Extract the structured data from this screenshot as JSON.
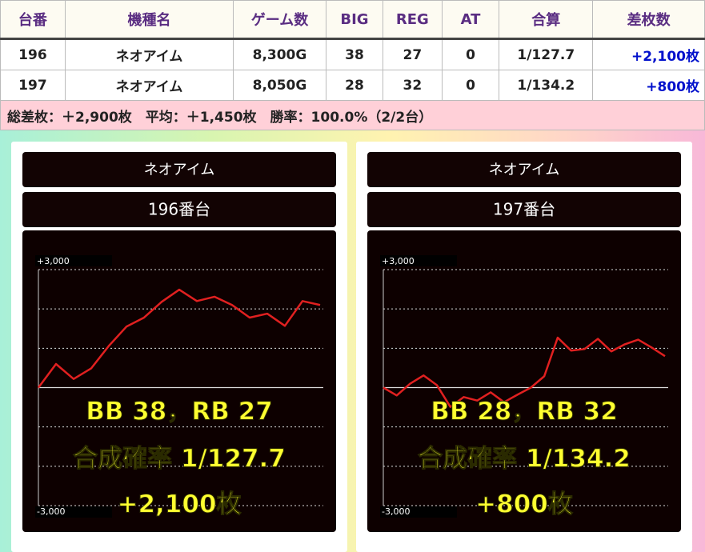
{
  "table": {
    "header": [
      "台番",
      "機種名",
      "ゲーム数",
      "BIG",
      "REG",
      "AT",
      "合算",
      "差枚数"
    ],
    "rows": [
      [
        "196",
        "ネオアイム",
        "8,300G",
        "38",
        "27",
        "0",
        "1/127.7",
        "+2,100枚"
      ],
      [
        "197",
        "ネオアイム",
        "8,050G",
        "28",
        "32",
        "0",
        "1/134.2",
        "+800枚"
      ]
    ],
    "summary": "総差枚：＋2,900枚　平均：＋1,450枚　勝率：100.0%（2/2台）"
  },
  "chart_data": [
    {
      "type": "line",
      "title": "ネオアイム",
      "subtitle": "196番台",
      "ylim": [
        -3000,
        3000
      ],
      "yticks": [
        {
          "value": 3000,
          "label": "+3,000"
        },
        {
          "value": 2000,
          "label": null
        },
        {
          "value": 1000,
          "label": null
        },
        {
          "value": 0,
          "label": null
        },
        {
          "value": -1000,
          "label": null
        },
        {
          "value": -2000,
          "label": null
        },
        {
          "value": -3000,
          "label": "-3,000"
        }
      ],
      "grid": true,
      "color": "#e02020",
      "values": [
        0,
        600,
        220,
        490,
        1060,
        1550,
        1780,
        2180,
        2490,
        2200,
        2310,
        2100,
        1780,
        1880,
        1570,
        2200,
        2100
      ],
      "annotations": [
        "BB 38，RB 27",
        "合成確率  1/127.7",
        "+2,100枚"
      ]
    },
    {
      "type": "line",
      "title": "ネオアイム",
      "subtitle": "197番台",
      "ylim": [
        -3000,
        3000
      ],
      "yticks": [
        {
          "value": 3000,
          "label": "+3,000"
        },
        {
          "value": 2000,
          "label": null
        },
        {
          "value": 1000,
          "label": null
        },
        {
          "value": 0,
          "label": null
        },
        {
          "value": -1000,
          "label": null
        },
        {
          "value": -2000,
          "label": null
        },
        {
          "value": -3000,
          "label": "-3,000"
        }
      ],
      "grid": true,
      "color": "#e02020",
      "values": [
        0,
        -200,
        100,
        310,
        60,
        -490,
        -240,
        -330,
        -120,
        -370,
        -180,
        0,
        290,
        1270,
        940,
        980,
        1240,
        920,
        1100,
        1220,
        1020,
        800
      ],
      "annotations": [
        "BB 28，RB 32",
        "合成確率  1/134.2",
        "+800枚"
      ]
    }
  ]
}
